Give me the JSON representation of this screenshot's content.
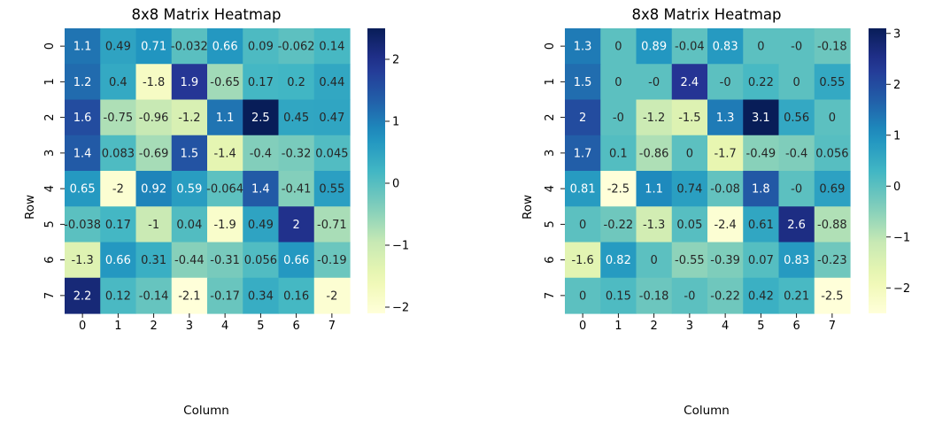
{
  "chart_data": [
    {
      "type": "heatmap",
      "title": "8x8 Matrix Heatmap",
      "xlabel": "Column",
      "ylabel": "Row",
      "x_ticks": [
        "0",
        "1",
        "2",
        "3",
        "4",
        "5",
        "6",
        "7"
      ],
      "y_ticks": [
        "0",
        "1",
        "2",
        "3",
        "4",
        "5",
        "6",
        "7"
      ],
      "colormap": "YlGnBu",
      "vmin": -2.1,
      "vmax": 2.5,
      "colorbar_ticks": [
        -2,
        -1,
        0,
        1,
        2
      ],
      "colorbar_labels": [
        "−2",
        "−1",
        "0",
        "1",
        "2"
      ],
      "values": [
        [
          1.1,
          0.49,
          0.71,
          -0.032,
          0.66,
          0.09,
          -0.062,
          0.14
        ],
        [
          1.2,
          0.4,
          -1.8,
          1.9,
          -0.65,
          0.17,
          0.2,
          0.44
        ],
        [
          1.6,
          -0.75,
          -0.96,
          -1.2,
          1.1,
          2.5,
          0.45,
          0.47
        ],
        [
          1.4,
          0.083,
          -0.69,
          1.5,
          -1.4,
          -0.4,
          -0.32,
          0.045
        ],
        [
          0.65,
          -2,
          0.92,
          0.59,
          -0.064,
          1.4,
          -0.41,
          0.55
        ],
        [
          -0.038,
          0.17,
          -1,
          0.04,
          -1.9,
          0.49,
          2,
          -0.71
        ],
        [
          -1.3,
          0.66,
          0.31,
          -0.44,
          -0.31,
          0.056,
          0.66,
          -0.19
        ],
        [
          2.2,
          0.12,
          -0.14,
          -2.1,
          -0.17,
          0.34,
          0.16,
          -2
        ]
      ],
      "annotations": [
        [
          "1.1",
          "0.49",
          "0.71",
          "-0.032",
          "0.66",
          "0.09",
          "-0.062",
          "0.14"
        ],
        [
          "1.2",
          "0.4",
          "-1.8",
          "1.9",
          "-0.65",
          "0.17",
          "0.2",
          "0.44"
        ],
        [
          "1.6",
          "-0.75",
          "-0.96",
          "-1.2",
          "1.1",
          "2.5",
          "0.45",
          "0.47"
        ],
        [
          "1.4",
          "0.083",
          "-0.69",
          "1.5",
          "-1.4",
          "-0.4",
          "-0.32",
          "0.045"
        ],
        [
          "0.65",
          "-2",
          "0.92",
          "0.59",
          "-0.064",
          "1.4",
          "-0.41",
          "0.55"
        ],
        [
          "-0.038",
          "0.17",
          "-1",
          "0.04",
          "-1.9",
          "0.49",
          "2",
          "-0.71"
        ],
        [
          "-1.3",
          "0.66",
          "0.31",
          "-0.44",
          "-0.31",
          "0.056",
          "0.66",
          "-0.19"
        ],
        [
          "2.2",
          "0.12",
          "-0.14",
          "-2.1",
          "-0.17",
          "0.34",
          "0.16",
          "-2"
        ]
      ]
    },
    {
      "type": "heatmap",
      "title": "8x8 Matrix Heatmap",
      "xlabel": "Column",
      "ylabel": "Row",
      "x_ticks": [
        "0",
        "1",
        "2",
        "3",
        "4",
        "5",
        "6",
        "7"
      ],
      "y_ticks": [
        "0",
        "1",
        "2",
        "3",
        "4",
        "5",
        "6",
        "7"
      ],
      "colormap": "YlGnBu",
      "vmin": -2.5,
      "vmax": 3.1,
      "colorbar_ticks": [
        -2,
        -1,
        0,
        1,
        2,
        3
      ],
      "colorbar_labels": [
        "−2",
        "−1",
        "0",
        "1",
        "2",
        "3"
      ],
      "values": [
        [
          1.3,
          0,
          0.89,
          -0.04,
          0.83,
          0,
          0,
          -0.18
        ],
        [
          1.5,
          0,
          0,
          2.4,
          0,
          0.22,
          0,
          0.55
        ],
        [
          2,
          0,
          -1.2,
          -1.5,
          1.3,
          3.1,
          0.56,
          0
        ],
        [
          1.7,
          0.1,
          -0.86,
          0,
          -1.7,
          -0.49,
          -0.4,
          0.056
        ],
        [
          0.81,
          -2.5,
          1.1,
          0.74,
          -0.08,
          1.8,
          0,
          0.69
        ],
        [
          0,
          -0.22,
          -1.3,
          0.05,
          -2.4,
          0.61,
          2.6,
          -0.88
        ],
        [
          -1.6,
          0.82,
          0,
          -0.55,
          -0.39,
          0.07,
          0.83,
          -0.23
        ],
        [
          0,
          0.15,
          -0.18,
          0,
          -0.22,
          0.42,
          0.21,
          -2.5
        ]
      ],
      "annotations": [
        [
          "1.3",
          "0",
          "0.89",
          "-0.04",
          "0.83",
          "0",
          "-0",
          "-0.18"
        ],
        [
          "1.5",
          "0",
          "-0",
          "2.4",
          "-0",
          "0.22",
          "0",
          "0.55"
        ],
        [
          "2",
          "-0",
          "-1.2",
          "-1.5",
          "1.3",
          "3.1",
          "0.56",
          "0"
        ],
        [
          "1.7",
          "0.1",
          "-0.86",
          "0",
          "-1.7",
          "-0.49",
          "-0.4",
          "0.056"
        ],
        [
          "0.81",
          "-2.5",
          "1.1",
          "0.74",
          "-0.08",
          "1.8",
          "-0",
          "0.69"
        ],
        [
          "0",
          "-0.22",
          "-1.3",
          "0.05",
          "-2.4",
          "0.61",
          "2.6",
          "-0.88"
        ],
        [
          "-1.6",
          "0.82",
          "0",
          "-0.55",
          "-0.39",
          "0.07",
          "0.83",
          "-0.23"
        ],
        [
          "0",
          "0.15",
          "-0.18",
          "-0",
          "-0.22",
          "0.42",
          "0.21",
          "-2.5"
        ]
      ]
    }
  ]
}
